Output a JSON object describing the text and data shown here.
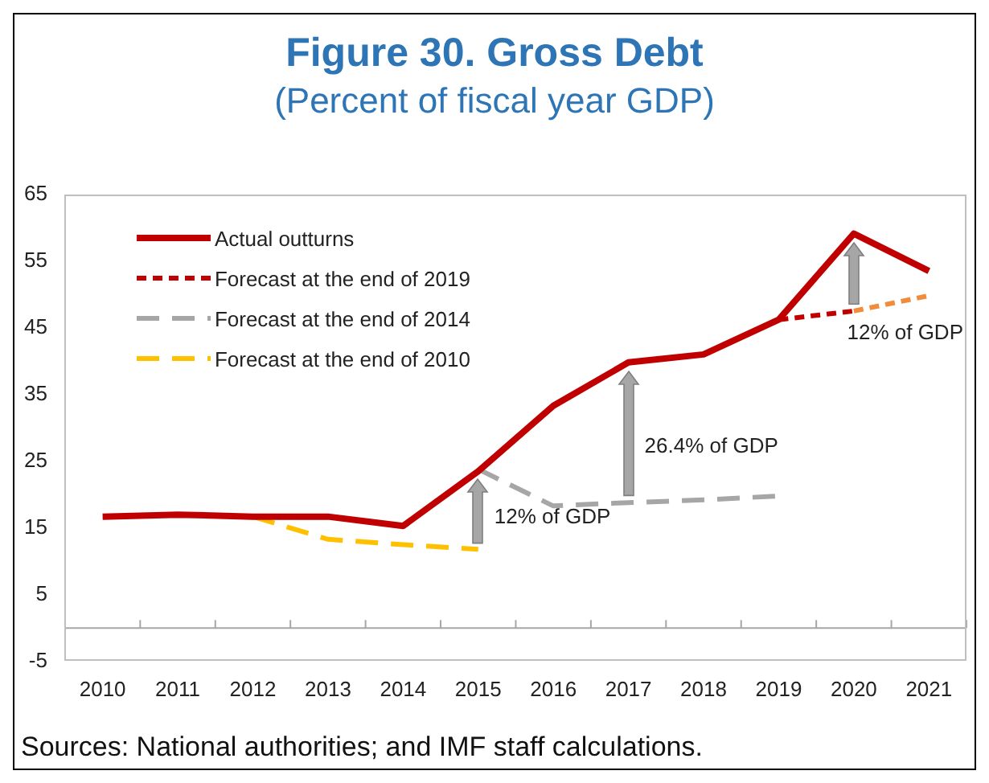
{
  "chart_data": {
    "type": "line",
    "title": "Figure 30. Gross Debt",
    "subtitle": "(Percent of fiscal year GDP)",
    "categories": [
      "2010",
      "2011",
      "2012",
      "2013",
      "2014",
      "2015",
      "2016",
      "2017",
      "2018",
      "2019",
      "2020",
      "2021"
    ],
    "series": [
      {
        "name": "Actual outturns",
        "color": "#c00000",
        "line_style": "solid",
        "values": [
          16.7,
          17.0,
          16.7,
          16.7,
          15.3,
          23.5,
          33.3,
          39.8,
          41.0,
          46.2,
          59.1,
          53.5
        ]
      },
      {
        "name": "Forecast at the end of 2019",
        "color": "#c00000",
        "line_style": "dotted",
        "values": [
          null,
          null,
          null,
          null,
          null,
          null,
          null,
          null,
          null,
          46.2,
          47.5,
          null
        ]
      },
      {
        "color": "#f08c3c",
        "line_style": "dotted",
        "values": [
          null,
          null,
          null,
          null,
          null,
          null,
          null,
          null,
          null,
          null,
          47.5,
          49.8
        ]
      },
      {
        "name": "Forecast at the end of 2014",
        "color": "#a6a6a6",
        "line_style": "dashed",
        "values": [
          null,
          null,
          null,
          null,
          null,
          23.8,
          18.3,
          18.8,
          19.2,
          19.8,
          null,
          null
        ]
      },
      {
        "name": "Forecast at the end of 2010",
        "color": "#ffc000",
        "line_style": "dashed",
        "values": [
          null,
          null,
          16.7,
          13.3,
          12.5,
          11.8,
          null,
          null,
          null,
          null,
          null,
          null
        ]
      }
    ],
    "ylim": [
      -5,
      65
    ],
    "yticks": [
      -5,
      5,
      15,
      25,
      35,
      45,
      55,
      65
    ],
    "grid": false,
    "legend": "top left",
    "marker": "none",
    "ref_lines": [
      {
        "axis": "y",
        "value": 0,
        "color": "#a6a6a6"
      }
    ],
    "annotations": [
      "12% of GDP",
      "26.4% of GDP",
      "12% of GDP",
      "Sources: National authorities; and IMF staff calculations."
    ]
  }
}
